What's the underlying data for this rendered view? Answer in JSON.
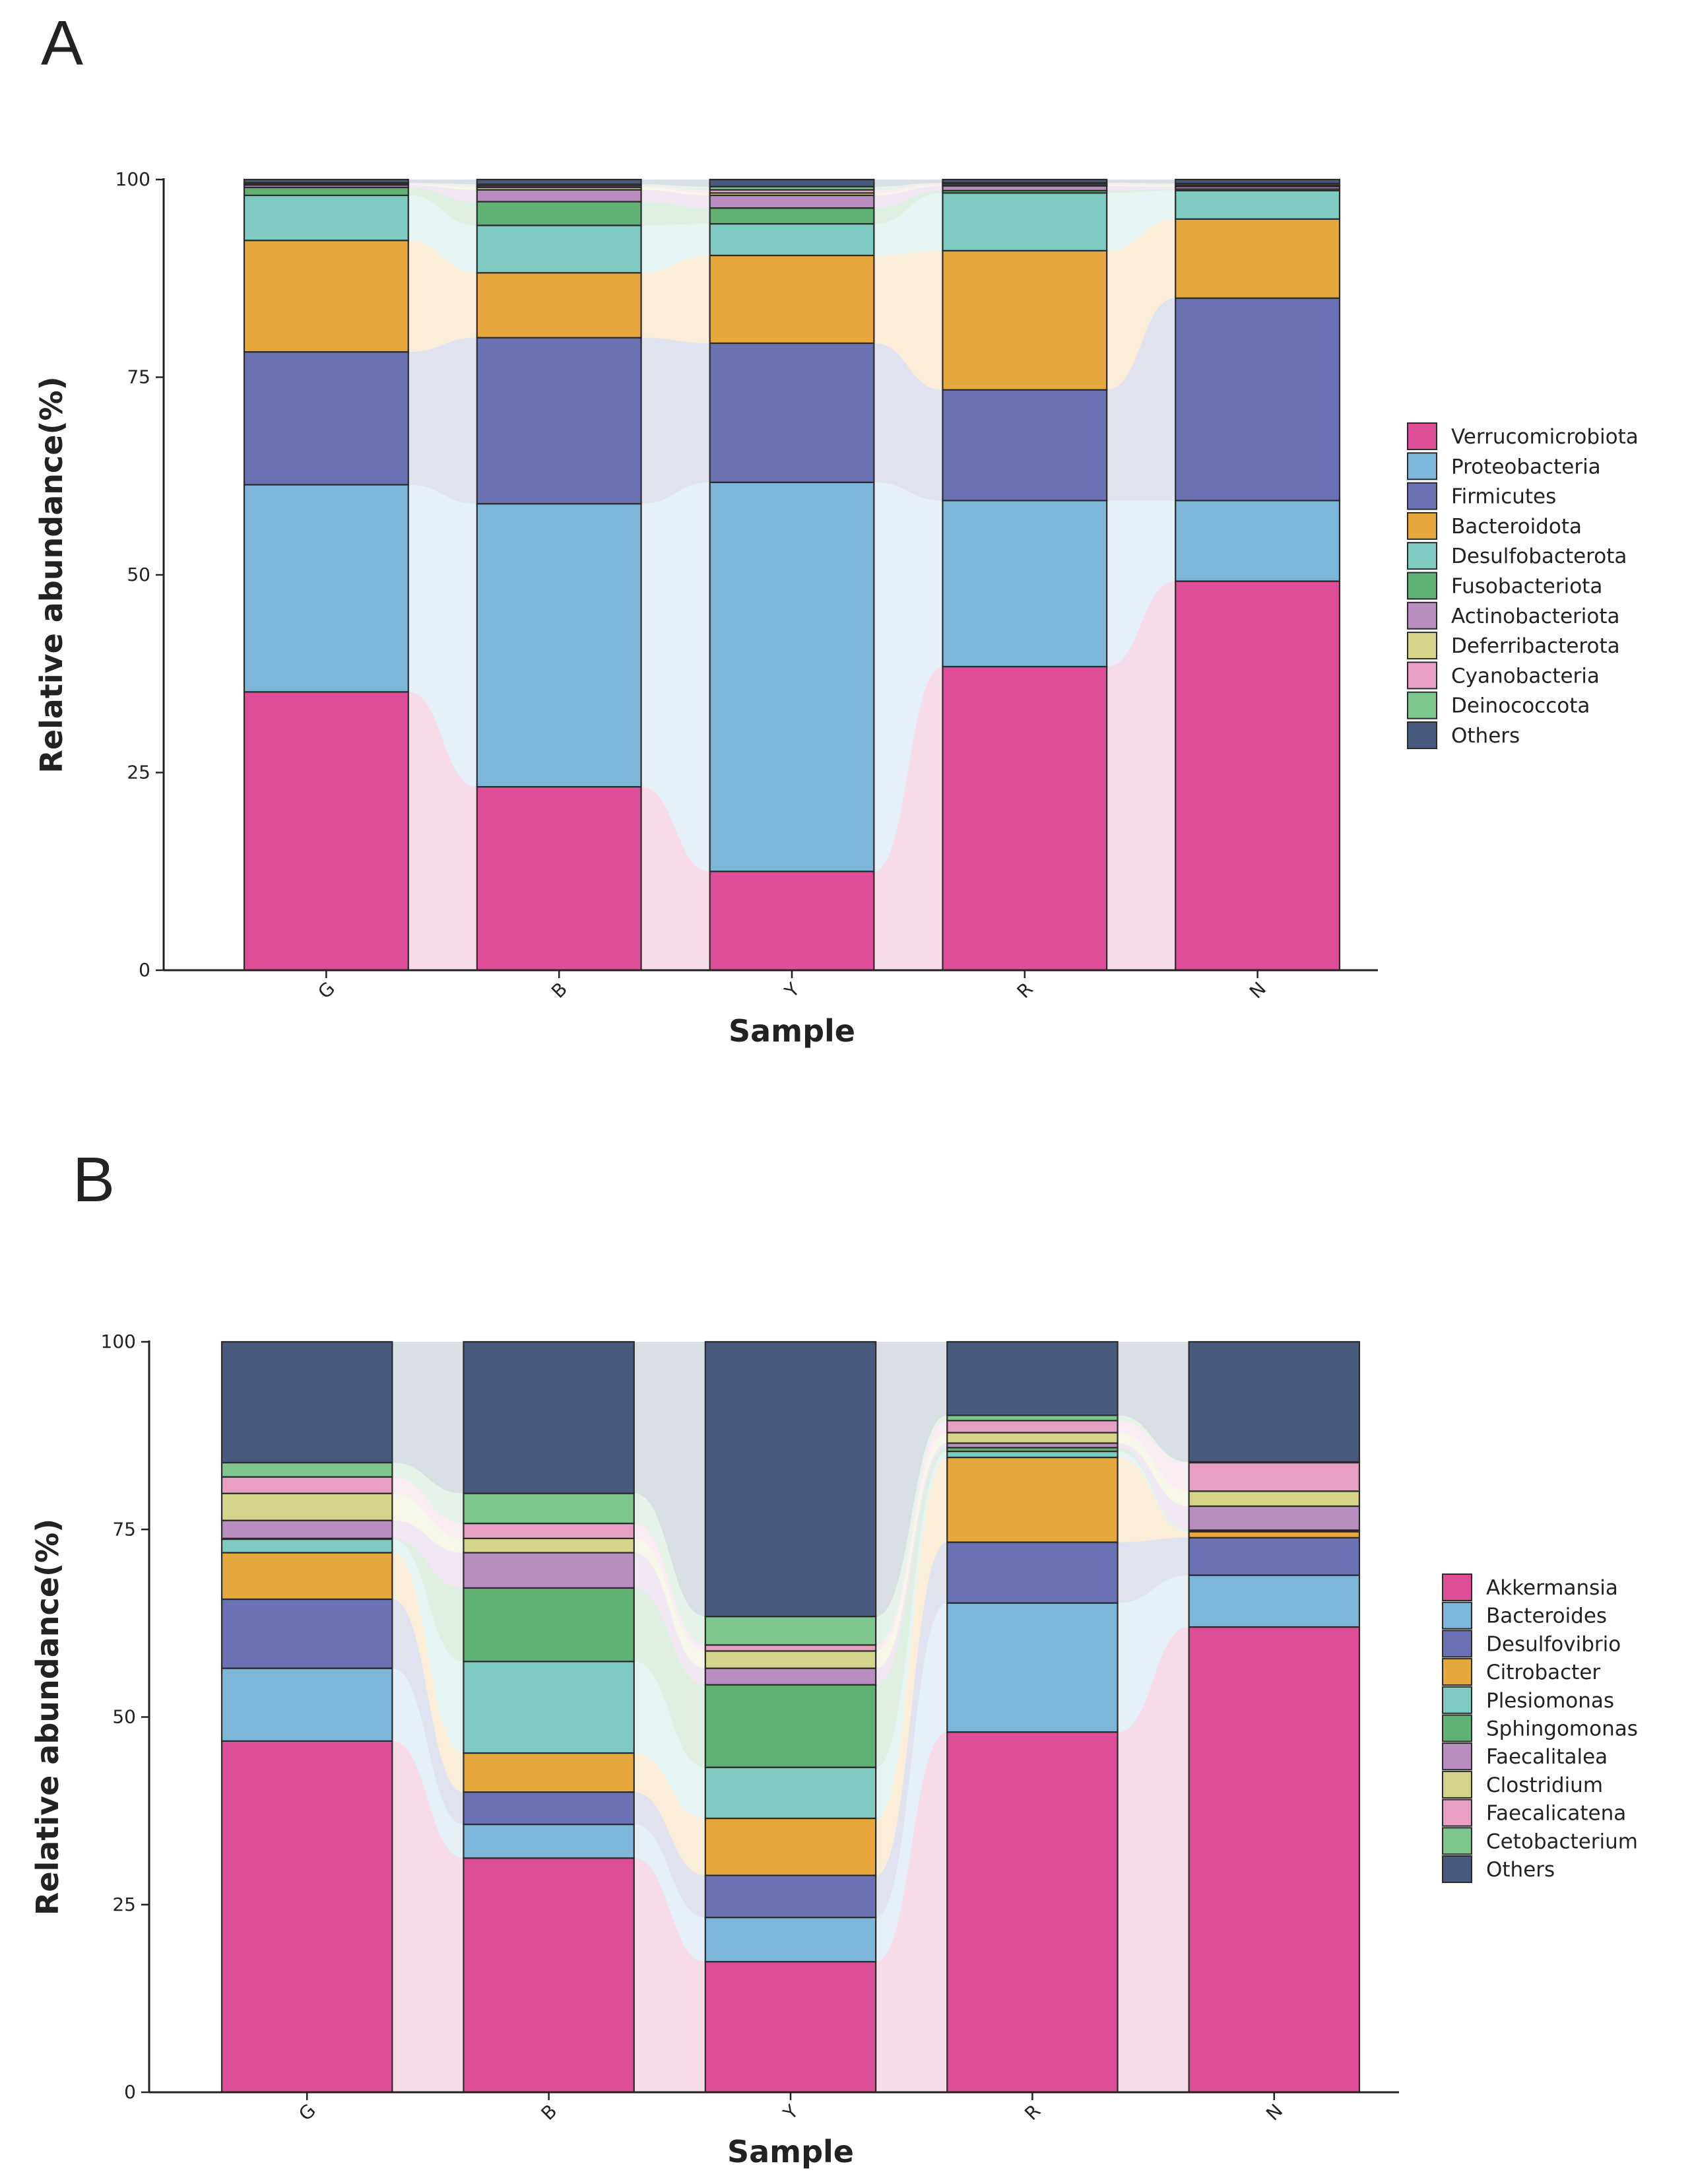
{
  "figure": {
    "panels": [
      "A",
      "B"
    ]
  },
  "chart_data": [
    {
      "panel": "A",
      "type": "bar",
      "stacked": true,
      "normalized": true,
      "xlabel": "Sample",
      "ylabel": "Relative abundance(%)",
      "ylim": [
        0,
        100
      ],
      "yticks": [
        0,
        25,
        50,
        75,
        100
      ],
      "categories": [
        "G",
        "B",
        "Y",
        "R",
        "N"
      ],
      "legend_position": "right",
      "series": [
        {
          "name": "Verrucomicrobiota",
          "color": "#DD4E96",
          "values": [
            35.2,
            23.2,
            12.5,
            38.4,
            49.2
          ]
        },
        {
          "name": "Proteobacteria",
          "color": "#7EB6DA",
          "values": [
            26.2,
            35.8,
            49.2,
            21.0,
            10.2
          ]
        },
        {
          "name": "Firmicutes",
          "color": "#6A72B4",
          "values": [
            16.8,
            21.0,
            17.6,
            14.0,
            25.6
          ]
        },
        {
          "name": "Bacteroidota",
          "color": "#E6A83C",
          "values": [
            14.1,
            8.2,
            11.1,
            17.6,
            10.0
          ]
        },
        {
          "name": "Desulfobacterota",
          "color": "#7FCBC1",
          "values": [
            5.7,
            6.0,
            4.0,
            7.3,
            3.6
          ]
        },
        {
          "name": "Fusobacteriota",
          "color": "#5FB274",
          "values": [
            1.0,
            3.0,
            2.0,
            0.3,
            0.2
          ]
        },
        {
          "name": "Actinobacteriota",
          "color": "#BA8DC1",
          "values": [
            0.3,
            1.5,
            1.6,
            0.6,
            0.3
          ]
        },
        {
          "name": "Deferribacterota",
          "color": "#D4D58A",
          "values": [
            0.1,
            0.3,
            0.3,
            0.1,
            0.1
          ]
        },
        {
          "name": "Cyanobacteria",
          "color": "#E7A0C4",
          "values": [
            0.1,
            0.2,
            0.4,
            0.2,
            0.1
          ]
        },
        {
          "name": "Deinococcota",
          "color": "#7EC58E",
          "values": [
            0.1,
            0.2,
            0.4,
            0.1,
            0.2
          ]
        },
        {
          "name": "Others",
          "color": "#485A7D",
          "values": [
            0.4,
            0.6,
            0.9,
            0.4,
            0.5
          ]
        }
      ]
    },
    {
      "panel": "B",
      "type": "bar",
      "stacked": true,
      "normalized": true,
      "xlabel": "Sample",
      "ylabel": "Relative abundance(%)",
      "ylim": [
        0,
        100
      ],
      "yticks": [
        0,
        25,
        50,
        75,
        100
      ],
      "categories": [
        "G",
        "B",
        "Y",
        "R",
        "N"
      ],
      "legend_position": "right",
      "series": [
        {
          "name": "Akkermansia",
          "color": "#DD4E96",
          "values": [
            46.8,
            31.2,
            17.4,
            48.0,
            62.0
          ]
        },
        {
          "name": "Bacteroides",
          "color": "#7EB6DA",
          "values": [
            9.7,
            4.5,
            5.9,
            17.2,
            6.9
          ]
        },
        {
          "name": "Desulfovibrio",
          "color": "#6A72B4",
          "values": [
            9.2,
            4.3,
            5.6,
            8.1,
            5.0
          ]
        },
        {
          "name": "Citrobacter",
          "color": "#E6A83C",
          "values": [
            6.2,
            5.2,
            7.6,
            11.3,
            0.8
          ]
        },
        {
          "name": "Plesiomonas",
          "color": "#7FCBC1",
          "values": [
            1.8,
            12.2,
            6.8,
            0.8,
            0.1
          ]
        },
        {
          "name": "Sphingomonas",
          "color": "#5FB274",
          "values": [
            0.1,
            9.8,
            11.0,
            0.5,
            0.1
          ]
        },
        {
          "name": "Faecalitalea",
          "color": "#BA8DC1",
          "values": [
            2.4,
            4.7,
            2.2,
            0.6,
            3.2
          ]
        },
        {
          "name": "Clostridium",
          "color": "#D4D58A",
          "values": [
            3.6,
            1.9,
            2.3,
            1.4,
            2.0
          ]
        },
        {
          "name": "Faecalicatena",
          "color": "#E7A0C4",
          "values": [
            2.2,
            2.0,
            0.8,
            1.6,
            3.8
          ]
        },
        {
          "name": "Cetobacterium",
          "color": "#7EC58E",
          "values": [
            1.9,
            4.0,
            3.8,
            0.7,
            0.1
          ]
        },
        {
          "name": "Others",
          "color": "#485A7D",
          "values": [
            16.1,
            20.2,
            36.6,
            9.8,
            16.0
          ]
        }
      ]
    }
  ]
}
